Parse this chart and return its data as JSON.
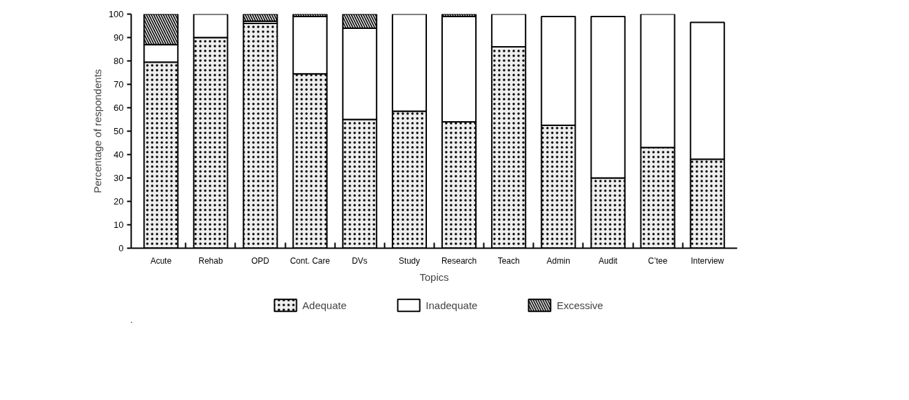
{
  "chart_data": {
    "type": "bar",
    "stacked": true,
    "xlabel": "Topics",
    "ylabel": "Percentage of respondents",
    "categories": [
      "Acute",
      "Rehab",
      "OPD",
      "Cont. Care",
      "DVs",
      "Study",
      "Research",
      "Teach",
      "Admin",
      "Audit",
      "C’tee",
      "Interview"
    ],
    "series": [
      {
        "name": "Adequate",
        "color": "#eeeeee",
        "values": [
          79.5,
          90,
          96,
          74.5,
          55,
          58.5,
          54,
          86,
          52.5,
          30,
          43,
          38
        ]
      },
      {
        "name": "Inadequate",
        "color": "#ffffff",
        "values": [
          7.5,
          10,
          1,
          24.5,
          39,
          41.5,
          45,
          14,
          46.5,
          69,
          57,
          58.5
        ]
      },
      {
        "name": "Excessive",
        "color": "#dddddd",
        "values": [
          13,
          null,
          3,
          1,
          6,
          null,
          1,
          null,
          null,
          null,
          null,
          null
        ]
      }
    ],
    "ylim": [
      0,
      100
    ],
    "yticks": [
      0,
      10,
      20,
      30,
      40,
      50,
      60,
      70,
      80,
      90,
      100
    ],
    "grid": false,
    "legend": "bottom"
  }
}
